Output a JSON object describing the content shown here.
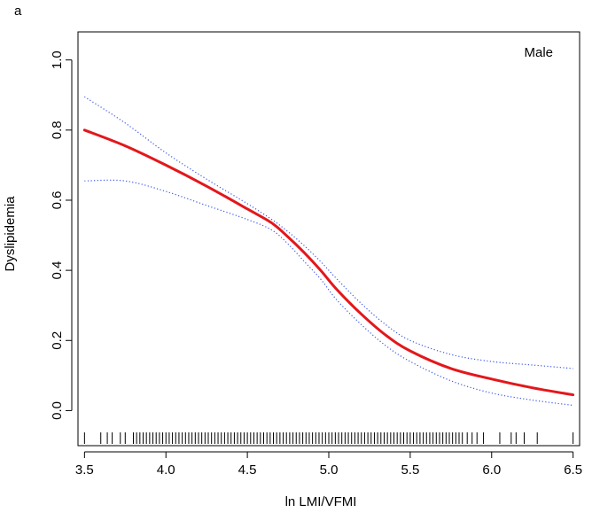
{
  "panel_label": "a",
  "chart_data": {
    "type": "line",
    "title": "",
    "annotation": "Male",
    "xlabel": "ln LMI/VFMI",
    "ylabel": "Dyslipidemia",
    "xlim": [
      3.46,
      6.54
    ],
    "ylim": [
      -0.1,
      1.08
    ],
    "xticks": [
      3.5,
      4.0,
      4.5,
      5.0,
      5.5,
      6.0,
      6.5
    ],
    "yticks": [
      0.0,
      0.2,
      0.4,
      0.6,
      0.8,
      1.0
    ],
    "xtick_labels": [
      "3.5",
      "4.0",
      "4.5",
      "5.0",
      "5.5",
      "6.0",
      "6.5"
    ],
    "ytick_labels": [
      "0.0",
      "0.2",
      "0.4",
      "0.6",
      "0.8",
      "1.0"
    ],
    "series": [
      {
        "name": "estimate",
        "color": "#e3171b",
        "style": "solid",
        "x": [
          3.5,
          3.75,
          4.0,
          4.25,
          4.5,
          4.65,
          4.75,
          4.85,
          4.95,
          5.05,
          5.2,
          5.35,
          5.5,
          5.75,
          6.0,
          6.25,
          6.5
        ],
        "y": [
          0.8,
          0.755,
          0.7,
          0.64,
          0.575,
          0.535,
          0.495,
          0.45,
          0.4,
          0.345,
          0.275,
          0.215,
          0.17,
          0.12,
          0.09,
          0.065,
          0.045
        ]
      },
      {
        "name": "upper 95% CI",
        "color": "#3b57e8",
        "style": "dotted",
        "x": [
          3.5,
          3.75,
          4.0,
          4.25,
          4.5,
          4.65,
          4.75,
          4.85,
          4.95,
          5.05,
          5.2,
          5.35,
          5.5,
          5.75,
          6.0,
          6.25,
          6.5
        ],
        "y": [
          0.895,
          0.82,
          0.735,
          0.66,
          0.59,
          0.545,
          0.51,
          0.47,
          0.425,
          0.375,
          0.305,
          0.245,
          0.2,
          0.16,
          0.14,
          0.13,
          0.12
        ]
      },
      {
        "name": "lower 95% CI",
        "color": "#3b57e8",
        "style": "dotted",
        "x": [
          3.5,
          3.75,
          4.0,
          4.25,
          4.5,
          4.65,
          4.75,
          4.85,
          4.95,
          5.05,
          5.2,
          5.35,
          5.5,
          5.75,
          6.0,
          6.25,
          6.5
        ],
        "y": [
          0.655,
          0.655,
          0.625,
          0.585,
          0.545,
          0.515,
          0.475,
          0.425,
          0.375,
          0.315,
          0.245,
          0.185,
          0.14,
          0.085,
          0.05,
          0.03,
          0.015
        ]
      }
    ],
    "rug": [
      3.5,
      3.6,
      3.64,
      3.67,
      3.72,
      3.75,
      3.8,
      3.82,
      3.84,
      3.86,
      3.88,
      3.9,
      3.92,
      3.94,
      3.96,
      3.98,
      4.0,
      4.02,
      4.04,
      4.06,
      4.08,
      4.1,
      4.12,
      4.14,
      4.16,
      4.18,
      4.2,
      4.22,
      4.24,
      4.26,
      4.28,
      4.3,
      4.32,
      4.34,
      4.36,
      4.38,
      4.4,
      4.42,
      4.44,
      4.46,
      4.48,
      4.5,
      4.52,
      4.54,
      4.56,
      4.58,
      4.6,
      4.62,
      4.64,
      4.66,
      4.68,
      4.7,
      4.72,
      4.74,
      4.76,
      4.78,
      4.8,
      4.82,
      4.84,
      4.86,
      4.88,
      4.9,
      4.92,
      4.94,
      4.96,
      4.98,
      5.0,
      5.02,
      5.04,
      5.06,
      5.08,
      5.1,
      5.12,
      5.14,
      5.16,
      5.18,
      5.2,
      5.22,
      5.24,
      5.26,
      5.28,
      5.3,
      5.32,
      5.34,
      5.36,
      5.38,
      5.4,
      5.42,
      5.44,
      5.46,
      5.48,
      5.5,
      5.52,
      5.54,
      5.56,
      5.58,
      5.6,
      5.62,
      5.64,
      5.66,
      5.68,
      5.7,
      5.72,
      5.74,
      5.76,
      5.78,
      5.8,
      5.82,
      5.85,
      5.88,
      5.91,
      5.95,
      6.05,
      6.12,
      6.15,
      6.2,
      6.28,
      6.5
    ]
  }
}
